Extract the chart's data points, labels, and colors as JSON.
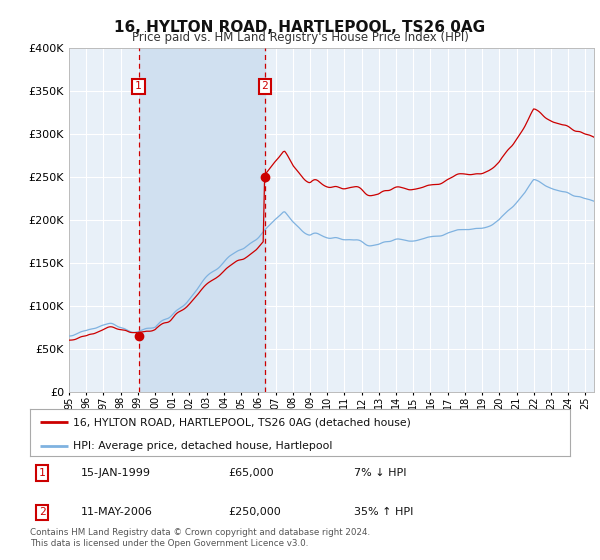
{
  "title": "16, HYLTON ROAD, HARTLEPOOL, TS26 0AG",
  "subtitle": "Price paid vs. HM Land Registry's House Price Index (HPI)",
  "legend_line1": "16, HYLTON ROAD, HARTLEPOOL, TS26 0AG (detached house)",
  "legend_line2": "HPI: Average price, detached house, Hartlepool",
  "table_row1": [
    "1",
    "15-JAN-1999",
    "£65,000",
    "7% ↓ HPI"
  ],
  "table_row2": [
    "2",
    "11-MAY-2006",
    "£250,000",
    "35% ↑ HPI"
  ],
  "footnote": "Contains HM Land Registry data © Crown copyright and database right 2024.\nThis data is licensed under the Open Government Licence v3.0.",
  "hpi_color": "#7fb2e0",
  "price_color": "#cc0000",
  "sale1_date_num": 1999.04,
  "sale2_date_num": 2006.37,
  "sale1_price": 65000,
  "sale2_price": 250000,
  "ylim_min": 0,
  "ylim_max": 400000,
  "xlim_min": 1995.0,
  "xlim_max": 2025.5,
  "background_color": "#ffffff",
  "plot_bg_color": "#e8f0f8",
  "grid_color": "#ffffff",
  "shade_color": "#d0e0f0"
}
